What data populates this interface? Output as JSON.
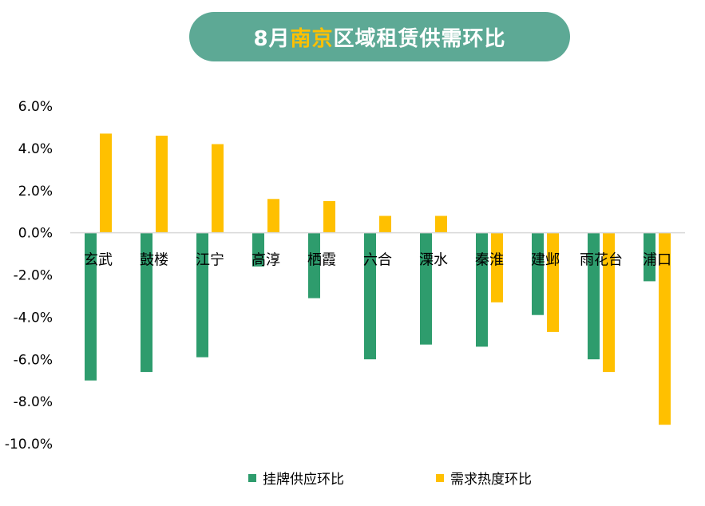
{
  "title": {
    "prefix": "8月",
    "highlight": "南京",
    "suffix": "区域租赁供需环比"
  },
  "colors": {
    "supply": "#2e9c6d",
    "demand": "#ffc000",
    "title_bg": "#5da995",
    "highlight": "#ffc000"
  },
  "chart_data": {
    "type": "bar",
    "title": "8月南京区域租赁供需环比",
    "categories": [
      "玄武",
      "鼓楼",
      "江宁",
      "高淳",
      "栖霞",
      "六合",
      "溧水",
      "秦淮",
      "建邺",
      "雨花台",
      "浦口"
    ],
    "series": [
      {
        "name": "挂牌供应环比",
        "color": "#2e9c6d",
        "values": [
          -7.0,
          -6.6,
          -5.9,
          -1.6,
          -3.1,
          -6.0,
          -5.3,
          -5.4,
          -3.9,
          -6.0,
          -2.3
        ]
      },
      {
        "name": "需求热度环比",
        "color": "#ffc000",
        "values": [
          4.7,
          4.6,
          4.2,
          1.6,
          1.5,
          0.8,
          0.8,
          -3.3,
          -4.7,
          -6.6,
          -9.1
        ]
      }
    ],
    "ylim": [
      -10.0,
      6.0
    ],
    "y_ticks": [
      "6.0%",
      "4.0%",
      "2.0%",
      "0.0%",
      "-2.0%",
      "-4.0%",
      "-6.0%",
      "-8.0%",
      "-10.0%"
    ],
    "y_tick_values": [
      6,
      4,
      2,
      0,
      -2,
      -4,
      -6,
      -8,
      -10
    ],
    "xlabel": "",
    "ylabel": "",
    "grid": false,
    "legend_position": "bottom"
  }
}
